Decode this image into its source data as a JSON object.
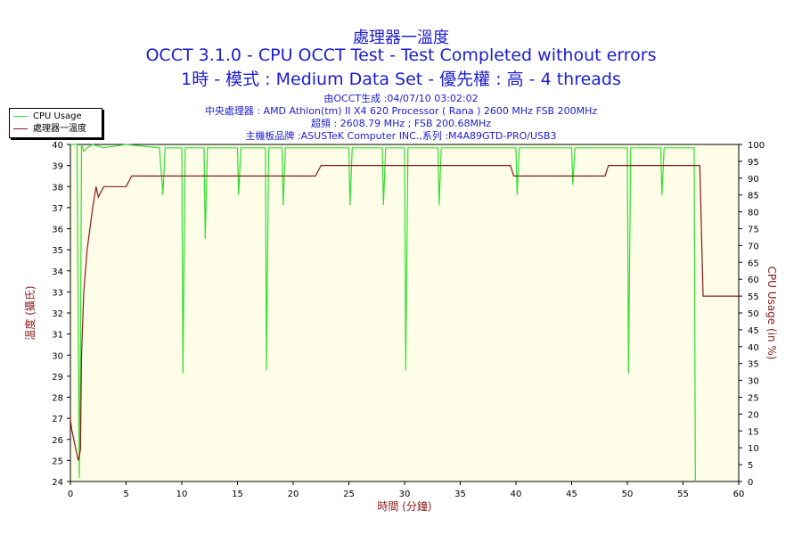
{
  "header": {
    "title_line1": "處理器一溫度",
    "title_line2": "OCCT 3.1.0 - CPU OCCT Test - Test Completed without errors",
    "title_line3": "1時 - 模式 : Medium Data Set - 優先權 : 高 - 4 threads",
    "info_line1": "由OCCT生成 :04/07/10 03:02:02",
    "info_line2": "中央處理器 : AMD Athlon(tm) II X4 620 Processor ( Rana ) 2600 MHz FSB 200MHz",
    "info_line3": "超頻 : 2608.79 MHz ; FSB 200.68MHz",
    "info_line4": "主機板品牌 :ASUSTeK Computer INC.,系列 :M4A89GTD-PRO/USB3"
  },
  "colors": {
    "cpu_usage": "#33dd33",
    "temperature": "#8b1a1a",
    "plot_background": "#fdfde8",
    "text_blue": "#1c1cd0"
  },
  "chart_data": {
    "type": "line",
    "xlabel": "時間 (分鐘)",
    "ylabel_left": "溫度 (攝氏)",
    "ylabel_right": "CPU Usage (in %)",
    "xlim": [
      0,
      60
    ],
    "ylim_left": [
      24,
      40
    ],
    "ylim_right": [
      0,
      100
    ],
    "x_ticks": [
      0,
      5,
      10,
      15,
      20,
      25,
      30,
      35,
      40,
      45,
      50,
      55,
      60
    ],
    "y_left_ticks": [
      24,
      25,
      26,
      27,
      28,
      29,
      30,
      31,
      32,
      33,
      34,
      35,
      36,
      37,
      38,
      39,
      40
    ],
    "y_right_ticks": [
      0,
      5,
      10,
      15,
      20,
      25,
      30,
      35,
      40,
      45,
      50,
      55,
      60,
      65,
      70,
      75,
      80,
      85,
      90,
      95,
      100
    ],
    "grid": false,
    "legend_position": "top-left",
    "series": [
      {
        "name": "CPU Usage",
        "axis": "right",
        "x": [
          0,
          0.6,
          0.8,
          0.9,
          1.0,
          1.2,
          1.5,
          2.0,
          3.0,
          5.0,
          8.0,
          8.3,
          8.5,
          10.0,
          10.1,
          10.3,
          12.0,
          12.1,
          12.3,
          15.0,
          15.1,
          15.3,
          17.5,
          17.6,
          17.8,
          19.0,
          19.1,
          19.3,
          25.0,
          25.1,
          25.3,
          28.0,
          28.1,
          28.3,
          30.0,
          30.1,
          30.3,
          33.0,
          33.1,
          33.3,
          40.0,
          40.1,
          40.3,
          45.0,
          45.1,
          45.3,
          50.0,
          50.1,
          50.3,
          53.0,
          53.1,
          53.3,
          55.5,
          56.0,
          56.1
        ],
        "values": [
          100,
          100,
          1,
          40,
          100,
          98,
          99,
          100,
          99,
          100,
          99,
          85,
          99,
          99,
          32,
          99,
          99,
          72,
          99,
          99,
          85,
          99,
          99,
          33,
          99,
          99,
          82,
          99,
          99,
          82,
          99,
          99,
          82,
          99,
          99,
          33,
          99,
          99,
          82,
          99,
          99,
          85,
          99,
          99,
          88,
          99,
          99,
          32,
          99,
          99,
          85,
          99,
          99,
          99,
          0
        ]
      },
      {
        "name": "處理器一溫度",
        "axis": "left",
        "x": [
          0,
          0.1,
          0.3,
          0.5,
          0.7,
          0.9,
          1.0,
          1.2,
          1.5,
          2.0,
          2.3,
          2.5,
          3.0,
          3.5,
          5.0,
          5.5,
          10.0,
          12.5,
          13.0,
          14.0,
          17.0,
          17.5,
          19.0,
          22.0,
          22.5,
          39.5,
          39.8,
          40.0,
          48.0,
          48.3,
          56.5,
          56.8,
          60.0
        ],
        "values": [
          27,
          26.5,
          26,
          25.5,
          25,
          25.5,
          30,
          33,
          35,
          37,
          38,
          37.5,
          38,
          38,
          38,
          38.5,
          38.5,
          38.5,
          38.5,
          38.5,
          38.5,
          38.5,
          38.5,
          38.5,
          39,
          39,
          38.5,
          38.5,
          38.5,
          39,
          39,
          32.8,
          32.8
        ]
      }
    ]
  }
}
